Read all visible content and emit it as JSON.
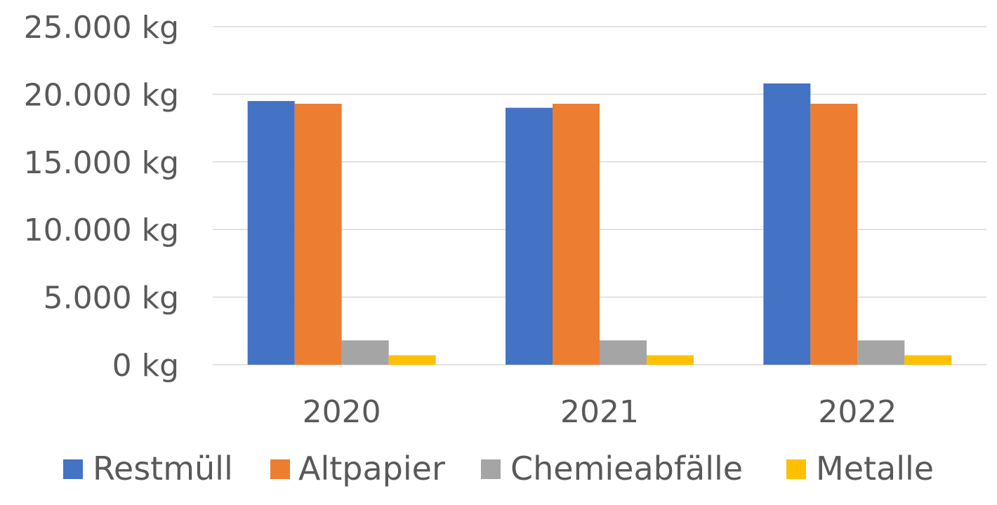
{
  "chart_data": {
    "type": "bar",
    "categories": [
      "2020",
      "2021",
      "2022"
    ],
    "series": [
      {
        "name": "Restmüll",
        "color": "#4472C4",
        "values": [
          19500,
          19000,
          20800
        ]
      },
      {
        "name": "Altpapier",
        "color": "#ED7D31",
        "values": [
          19300,
          19300,
          19300
        ]
      },
      {
        "name": "Chemieabfälle",
        "color": "#A5A5A5",
        "values": [
          1800,
          1800,
          1800
        ]
      },
      {
        "name": "Metalle",
        "color": "#FFC000",
        "values": [
          700,
          700,
          700
        ]
      }
    ],
    "ylim": [
      0,
      25000
    ],
    "yticks": [
      0,
      5000,
      10000,
      15000,
      20000,
      25000
    ],
    "ytick_labels": [
      "0 kg",
      "5.000 kg",
      "10.000 kg",
      "15.000 kg",
      "20.000 kg",
      "25.000 kg"
    ],
    "grid": true,
    "legend_position": "bottom"
  }
}
